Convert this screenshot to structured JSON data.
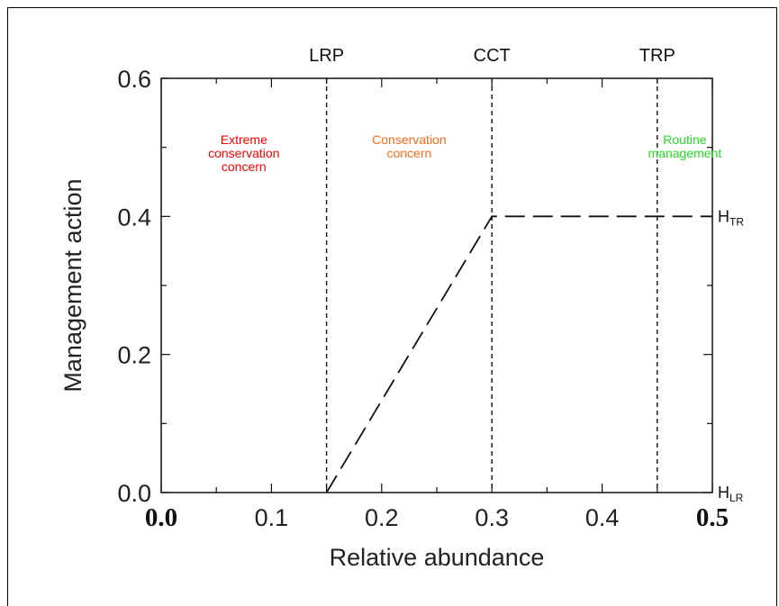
{
  "chart_data": {
    "type": "line",
    "title": "",
    "xlabel": "Relative abundance",
    "ylabel": "Management action",
    "xlim": [
      0,
      0.5
    ],
    "ylim": [
      0,
      0.6
    ],
    "x_ticks": [
      "0.0",
      "0.1",
      "0.2",
      "0.3",
      "0.4",
      "0.5"
    ],
    "y_ticks": [
      "0.0",
      "0.2",
      "0.4",
      "0.6"
    ],
    "series": [
      {
        "x": [
          0.15,
          0.3,
          0.5
        ],
        "y": [
          0.0,
          0.4,
          0.4
        ],
        "style": "dashed"
      }
    ],
    "reference_lines": [
      {
        "label": "LRP",
        "x": 0.15
      },
      {
        "label": "CCT",
        "x": 0.3
      },
      {
        "label": "TRP",
        "x": 0.45
      }
    ],
    "zones": [
      {
        "label": [
          "Extreme",
          "conservation",
          "concern"
        ],
        "color": "#ff0000",
        "x": 0.075
      },
      {
        "label": [
          "Conservation",
          "concern"
        ],
        "color": "#ff6a1a",
        "x": 0.225
      },
      {
        "label": [
          "Routine",
          "management"
        ],
        "color": "#22dd22",
        "x": 0.475
      }
    ],
    "right_labels": [
      {
        "main": "H",
        "sub": "TR",
        "y": 0.4
      },
      {
        "main": "H",
        "sub": "LR",
        "y": 0.0
      }
    ],
    "grid": false
  }
}
